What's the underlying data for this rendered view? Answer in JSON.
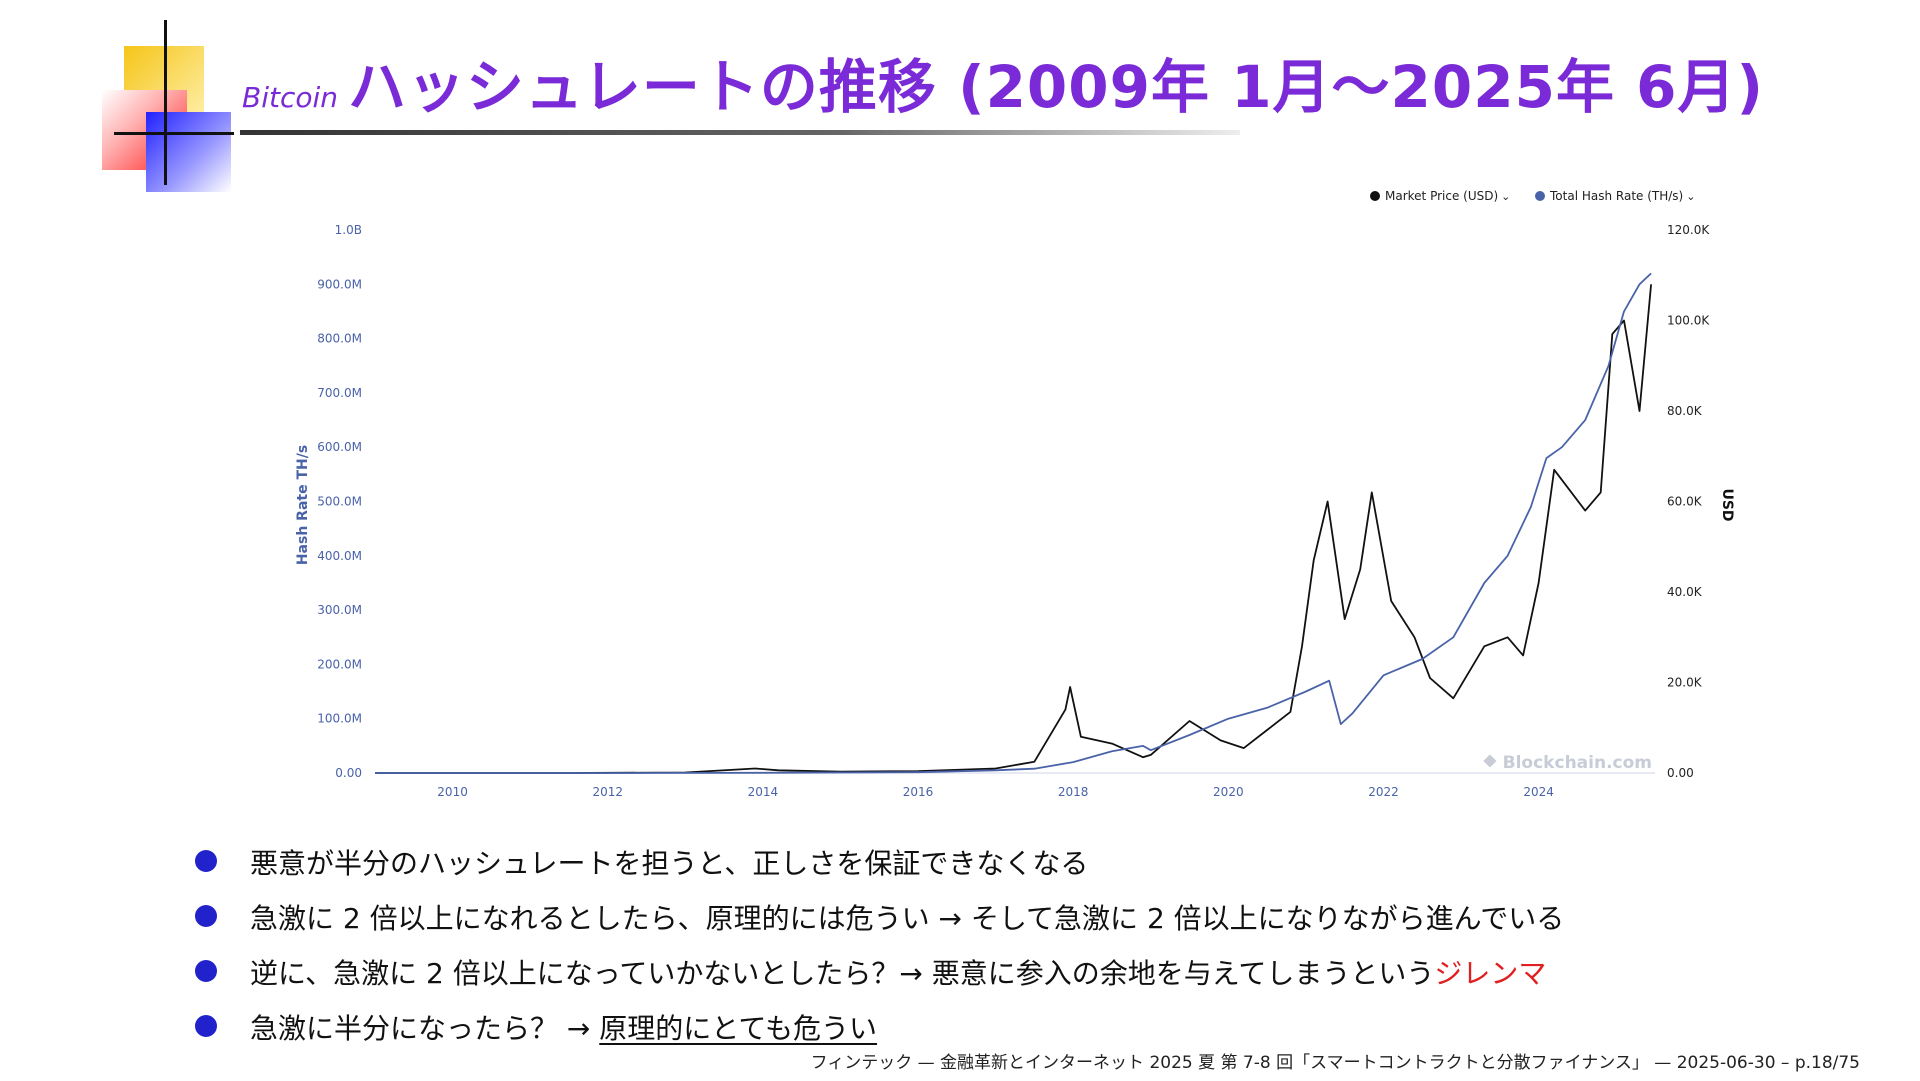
{
  "header": {
    "title_prefix": "Bitcoin",
    "title_main": "ハッシュレートの推移 (2009年 1月～2025年 6月)"
  },
  "colors": {
    "accent": "#7a2ad6",
    "price_series": "#111111",
    "hash_series": "#4a63a8",
    "bullet": "#2222cc",
    "highlight": "#e02020"
  },
  "chart_data": {
    "type": "line",
    "xlabel": "",
    "ylabel_left": "Hash Rate TH/s",
    "ylabel_right": "USD",
    "x_ticks": [
      "2010",
      "2012",
      "2014",
      "2016",
      "2018",
      "2020",
      "2022",
      "2024"
    ],
    "y_left_ticks": [
      "0.00",
      "100.0M",
      "200.0M",
      "300.0M",
      "400.0M",
      "500.0M",
      "600.0M",
      "700.0M",
      "800.0M",
      "900.0M",
      "1.0B"
    ],
    "y_right_ticks": [
      "0.00",
      "20.0K",
      "40.0K",
      "60.0K",
      "80.0K",
      "100.0K",
      "120.0K"
    ],
    "ylim_left": [
      0,
      1000000000
    ],
    "ylim_right": [
      0,
      120000
    ],
    "xlim": [
      2009.0,
      2025.5
    ],
    "watermark": "Blockchain.com",
    "legend_position": "top-right",
    "series": [
      {
        "name": "Market Price (USD)",
        "axis": "right",
        "x": [
          2009.0,
          2011.5,
          2013.0,
          2013.9,
          2014.2,
          2015.0,
          2016.0,
          2017.0,
          2017.5,
          2017.9,
          2017.96,
          2018.1,
          2018.5,
          2018.9,
          2019.0,
          2019.5,
          2019.9,
          2020.2,
          2020.5,
          2020.8,
          2020.95,
          2021.1,
          2021.28,
          2021.5,
          2021.7,
          2021.85,
          2022.1,
          2022.4,
          2022.6,
          2022.9,
          2023.3,
          2023.6,
          2023.8,
          2024.0,
          2024.2,
          2024.6,
          2024.8,
          2024.95,
          2025.1,
          2025.3,
          2025.45
        ],
        "y": [
          0,
          5,
          100,
          1000,
          600,
          300,
          430,
          1000,
          2500,
          14000,
          19000,
          8000,
          6500,
          3500,
          4000,
          11500,
          7200,
          5500,
          9500,
          13500,
          28000,
          47000,
          60000,
          34000,
          45000,
          62000,
          38000,
          30000,
          21000,
          16500,
          28000,
          30000,
          26000,
          42000,
          67000,
          58000,
          62000,
          97000,
          100000,
          80000,
          108000
        ]
      },
      {
        "name": "Total Hash Rate (TH/s)",
        "axis": "left",
        "x": [
          2009.0,
          2012.0,
          2014.0,
          2016.0,
          2017.0,
          2017.5,
          2018.0,
          2018.5,
          2018.9,
          2019.0,
          2019.5,
          2020.0,
          2020.5,
          2021.0,
          2021.3,
          2021.45,
          2021.6,
          2022.0,
          2022.5,
          2022.9,
          2023.3,
          2023.6,
          2023.9,
          2024.1,
          2024.3,
          2024.6,
          2024.9,
          2025.1,
          2025.3,
          2025.45
        ],
        "y": [
          0,
          0,
          400000,
          1500000,
          5000000,
          8000000,
          20000000,
          40000000,
          50000000,
          42000000,
          70000000,
          100000000,
          120000000,
          150000000,
          170000000,
          90000000,
          110000000,
          180000000,
          210000000,
          250000000,
          350000000,
          400000000,
          490000000,
          580000000,
          600000000,
          650000000,
          750000000,
          850000000,
          900000000,
          920000000
        ]
      }
    ]
  },
  "bullets": {
    "b1": "悪意が半分のハッシュレートを担うと、正しさを保証できなくなる",
    "b2": "急激に 2 倍以上になれるとしたら、原理的には危うい → そして急激に 2 倍以上になりながら進んでいる",
    "b3_main": "逆に、急激に 2 倍以上になっていかないとしたら？→ 悪意に参入の余地を与えてしまうという",
    "b3_highlight": "ジレンマ",
    "b4_main": "急激に半分になったら？ → ",
    "b4_underlined": "原理的にとても危うい"
  },
  "footer": {
    "text": "フィンテック — 金融革新とインターネット 2025 夏 第 7-8 回「スマートコントラクトと分散ファイナンス」 — 2025-06-30 – p.18/75"
  }
}
